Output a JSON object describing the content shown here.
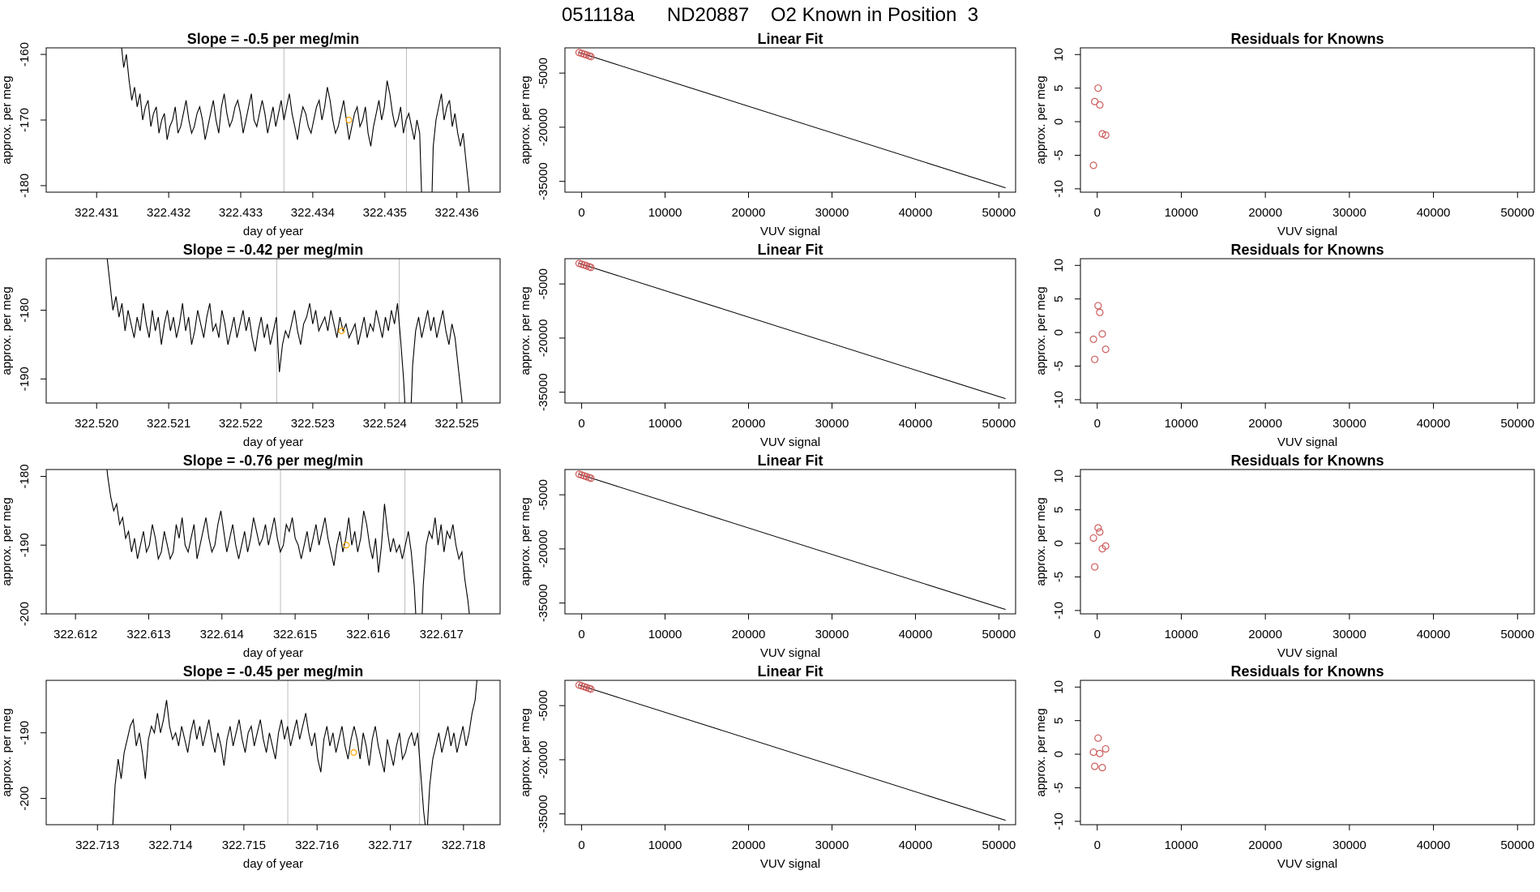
{
  "figure": {
    "title": "051118a      ND20887    O2 Known in Position  3"
  },
  "chart_data": [
    {
      "type": "line",
      "panel": "slope",
      "row": 1,
      "title": "Slope =  -0.5  per meg/min",
      "xlabel": "day of year",
      "ylabel": "approx. per meg",
      "xlim": [
        322.4303,
        322.4366
      ],
      "ylim": [
        -181,
        -159
      ],
      "x_ticks": [
        "322.431",
        "322.432",
        "322.433",
        "322.434",
        "322.435",
        "322.436"
      ],
      "y_ticks": [
        "-160",
        "-170",
        "-180"
      ],
      "x_start": 322.4313,
      "x_end": 322.4362,
      "trace": [
        -152,
        -158,
        -162,
        -160,
        -164,
        -167,
        -165,
        -168,
        -166,
        -170,
        -168,
        -167,
        -171,
        -169,
        -168,
        -172,
        -170,
        -169,
        -173,
        -171,
        -170,
        -168,
        -172,
        -171,
        -169,
        -167,
        -170,
        -172,
        -171,
        -169,
        -168,
        -170,
        -173,
        -171,
        -169,
        -167,
        -170,
        -172,
        -168,
        -166,
        -169,
        -171,
        -170,
        -168,
        -167,
        -169,
        -172,
        -170,
        -168,
        -166,
        -170,
        -171,
        -169,
        -167,
        -169,
        -172,
        -170,
        -168,
        -171,
        -169,
        -167,
        -170,
        -168,
        -166,
        -169,
        -171,
        -173,
        -170,
        -168,
        -169,
        -171,
        -172,
        -170,
        -168,
        -167,
        -170,
        -168,
        -165,
        -167,
        -170,
        -172,
        -171,
        -169,
        -167,
        -170,
        -173,
        -171,
        -169,
        -168,
        -171,
        -170,
        -168,
        -172,
        -174,
        -171,
        -169,
        -167,
        -170,
        -168,
        -164,
        -166,
        -169,
        -171,
        -170,
        -168,
        -172,
        -170,
        -169,
        -171,
        -173,
        -170,
        -172,
        -185,
        -195,
        -200,
        -190,
        -174,
        -170,
        -168,
        -166,
        -170,
        -168,
        -167,
        -171,
        -169,
        -172,
        -174,
        -172,
        -176,
        -180,
        -184
      ],
      "markers": [
        322.4336,
        322.4353
      ],
      "avg_point": {
        "x": 322.4345,
        "y": -170
      }
    },
    {
      "type": "line",
      "panel": "linear-fit",
      "row": 1,
      "title": "Linear Fit",
      "xlabel": "VUV signal",
      "ylabel": "approx. per meg",
      "xlim": [
        -2000,
        52000
      ],
      "ylim": [
        -38000,
        2000
      ],
      "x_ticks": [
        "0",
        "10000",
        "20000",
        "30000",
        "40000",
        "50000"
      ],
      "y_ticks": [
        "-5000",
        "-20000",
        "-35000"
      ],
      "fit_line": {
        "x": [
          -300,
          50800
        ],
        "y": [
          700,
          -36800
        ]
      },
      "known_points": {
        "x": [
          -300,
          0,
          300,
          600,
          900,
          1100
        ],
        "y": [
          700,
          480,
          250,
          0,
          -230,
          -420
        ]
      }
    },
    {
      "type": "scatter",
      "panel": "residuals",
      "row": 1,
      "title": "Residuals for Knowns",
      "xlabel": "VUV signal",
      "ylabel": "approx. per meg",
      "xlim": [
        -2000,
        52000
      ],
      "ylim": [
        -10.5,
        11
      ],
      "x_ticks": [
        "0",
        "10000",
        "20000",
        "30000",
        "40000",
        "50000"
      ],
      "y_ticks": [
        "-10",
        "-5",
        "0",
        "5",
        "10"
      ],
      "points": {
        "x": [
          -450,
          -300,
          100,
          300,
          600,
          1000
        ],
        "y": [
          -6.5,
          3,
          5,
          2.5,
          -1.8,
          -2
        ]
      }
    },
    {
      "type": "line",
      "panel": "slope",
      "row": 2,
      "title": "Slope =  -0.42  per meg/min",
      "xlabel": "day of year",
      "ylabel": "approx. per meg",
      "xlim": [
        322.5193,
        322.5256
      ],
      "ylim": [
        -193.5,
        -172.5
      ],
      "x_ticks": [
        "322.520",
        "322.521",
        "322.522",
        "322.523",
        "322.524",
        "322.525"
      ],
      "y_ticks": [
        "-180",
        "-190"
      ],
      "x_start": 322.5201,
      "x_end": 322.5251,
      "trace": [
        -165,
        -172,
        -176,
        -180,
        -178,
        -181,
        -179,
        -183,
        -180,
        -182,
        -184,
        -181,
        -183,
        -179,
        -182,
        -184,
        -180,
        -183,
        -181,
        -185,
        -182,
        -180,
        -183,
        -181,
        -184,
        -182,
        -179,
        -183,
        -181,
        -185,
        -183,
        -180,
        -182,
        -184,
        -181,
        -179,
        -183,
        -182,
        -184,
        -180,
        -182,
        -185,
        -183,
        -181,
        -184,
        -182,
        -180,
        -183,
        -181,
        -184,
        -186,
        -183,
        -181,
        -184,
        -182,
        -185,
        -183,
        -181,
        -189,
        -185,
        -183,
        -184,
        -182,
        -180,
        -183,
        -185,
        -182,
        -181,
        -179,
        -182,
        -180,
        -183,
        -182,
        -181,
        -183,
        -180,
        -182,
        -184,
        -181,
        -183,
        -182,
        -184,
        -183,
        -182,
        -185,
        -183,
        -181,
        -184,
        -182,
        -183,
        -180,
        -182,
        -184,
        -181,
        -183,
        -180,
        -182,
        -179,
        -184,
        -190,
        -198,
        -200,
        -188,
        -183,
        -181,
        -184,
        -182,
        -180,
        -183,
        -181,
        -184,
        -182,
        -180,
        -183,
        -185,
        -182,
        -184,
        -188,
        -192,
        -196
      ],
      "markers": [
        322.5225,
        322.5242
      ],
      "avg_point": {
        "x": 322.5234,
        "y": -183
      }
    },
    {
      "type": "line",
      "panel": "linear-fit",
      "row": 2,
      "title": "Linear Fit",
      "xlabel": "VUV signal",
      "ylabel": "approx. per meg",
      "xlim": [
        -2000,
        52000
      ],
      "ylim": [
        -38000,
        2000
      ],
      "x_ticks": [
        "0",
        "10000",
        "20000",
        "30000",
        "40000",
        "50000"
      ],
      "y_ticks": [
        "-5000",
        "-20000",
        "-35000"
      ],
      "fit_line": {
        "x": [
          -300,
          50800
        ],
        "y": [
          700,
          -36800
        ]
      },
      "known_points": {
        "x": [
          -300,
          0,
          300,
          600,
          900,
          1100
        ],
        "y": [
          700,
          480,
          250,
          0,
          -230,
          -420
        ]
      }
    },
    {
      "type": "scatter",
      "panel": "residuals",
      "row": 2,
      "title": "Residuals for Knowns",
      "xlabel": "VUV signal",
      "ylabel": "approx. per meg",
      "xlim": [
        -2000,
        52000
      ],
      "ylim": [
        -10.5,
        11
      ],
      "x_ticks": [
        "0",
        "10000",
        "20000",
        "30000",
        "40000",
        "50000"
      ],
      "y_ticks": [
        "-10",
        "-5",
        "0",
        "5",
        "10"
      ],
      "points": {
        "x": [
          -450,
          -300,
          100,
          300,
          600,
          1000
        ],
        "y": [
          -1,
          -4,
          4,
          3,
          -0.2,
          -2.5
        ]
      }
    },
    {
      "type": "line",
      "panel": "slope",
      "row": 3,
      "title": "Slope =  -0.76  per meg/min",
      "xlabel": "day of year",
      "ylabel": "approx. per meg",
      "xlim": [
        322.6116,
        322.6178
      ],
      "ylim": [
        -200,
        -179
      ],
      "x_ticks": [
        "322.612",
        "322.613",
        "322.614",
        "322.615",
        "322.616",
        "322.617"
      ],
      "y_ticks": [
        "-180",
        "-190",
        "-200"
      ],
      "x_start": 322.6124,
      "x_end": 322.6174,
      "trace": [
        -176,
        -180,
        -183,
        -185,
        -184,
        -187,
        -186,
        -189,
        -188,
        -191,
        -189,
        -192,
        -190,
        -188,
        -191,
        -190,
        -187,
        -189,
        -192,
        -191,
        -188,
        -190,
        -192,
        -191,
        -187,
        -189,
        -186,
        -190,
        -191,
        -189,
        -187,
        -192,
        -190,
        -188,
        -186,
        -189,
        -191,
        -190,
        -187,
        -185,
        -188,
        -191,
        -189,
        -187,
        -190,
        -192,
        -190,
        -188,
        -191,
        -189,
        -186,
        -188,
        -190,
        -189,
        -187,
        -190,
        -188,
        -186,
        -189,
        -191,
        -190,
        -187,
        -188,
        -186,
        -189,
        -190,
        -192,
        -190,
        -188,
        -191,
        -189,
        -187,
        -190,
        -188,
        -186,
        -189,
        -191,
        -193,
        -190,
        -188,
        -191,
        -189,
        -186,
        -190,
        -188,
        -191,
        -189,
        -185,
        -187,
        -190,
        -192,
        -189,
        -194,
        -190,
        -184,
        -188,
        -191,
        -189,
        -191,
        -190,
        -192,
        -190,
        -188,
        -191,
        -196,
        -204,
        -208,
        -196,
        -190,
        -188,
        -189,
        -186,
        -190,
        -187,
        -191,
        -188,
        -189,
        -187,
        -190,
        -192,
        -191,
        -195,
        -198,
        -202
      ],
      "markers": [
        322.6148,
        322.6165
      ],
      "avg_point": {
        "x": 322.6157,
        "y": -190
      }
    },
    {
      "type": "line",
      "panel": "linear-fit",
      "row": 3,
      "title": "Linear Fit",
      "xlabel": "VUV signal",
      "ylabel": "approx. per meg",
      "xlim": [
        -2000,
        52000
      ],
      "ylim": [
        -38000,
        2000
      ],
      "x_ticks": [
        "0",
        "10000",
        "20000",
        "30000",
        "40000",
        "50000"
      ],
      "y_ticks": [
        "-5000",
        "-20000",
        "-35000"
      ],
      "fit_line": {
        "x": [
          -300,
          50800
        ],
        "y": [
          700,
          -36800
        ]
      },
      "known_points": {
        "x": [
          -300,
          0,
          300,
          600,
          900,
          1100
        ],
        "y": [
          700,
          480,
          250,
          0,
          -230,
          -420
        ]
      }
    },
    {
      "type": "scatter",
      "panel": "residuals",
      "row": 3,
      "title": "Residuals for Knowns",
      "xlabel": "VUV signal",
      "ylabel": "approx. per meg",
      "xlim": [
        -2000,
        52000
      ],
      "ylim": [
        -10.5,
        11
      ],
      "x_ticks": [
        "0",
        "10000",
        "20000",
        "30000",
        "40000",
        "50000"
      ],
      "y_ticks": [
        "-10",
        "-5",
        "0",
        "5",
        "10"
      ],
      "points": {
        "x": [
          -450,
          -300,
          100,
          300,
          600,
          1000
        ],
        "y": [
          0.8,
          -3.5,
          2.3,
          1.7,
          -0.8,
          -0.4
        ]
      }
    },
    {
      "type": "line",
      "panel": "slope",
      "row": 4,
      "title": "Slope =  -0.45  per meg/min",
      "xlabel": "day of year",
      "ylabel": "approx. per meg",
      "xlim": [
        322.7123,
        322.7185
      ],
      "ylim": [
        -204,
        -182
      ],
      "x_ticks": [
        "322.713",
        "322.714",
        "322.715",
        "322.716",
        "322.717",
        "322.718"
      ],
      "y_ticks": [
        "-190",
        "-200"
      ],
      "x_start": 322.7132,
      "x_end": 322.7182,
      "trace": [
        -206,
        -198,
        -194,
        -197,
        -193,
        -191,
        -189,
        -188,
        -192,
        -190,
        -193,
        -197,
        -191,
        -189,
        -190,
        -187,
        -190,
        -188,
        -185,
        -189,
        -191,
        -190,
        -192,
        -189,
        -191,
        -193,
        -190,
        -188,
        -191,
        -189,
        -192,
        -190,
        -188,
        -191,
        -193,
        -190,
        -192,
        -195,
        -191,
        -189,
        -192,
        -190,
        -188,
        -191,
        -193,
        -190,
        -189,
        -192,
        -190,
        -188,
        -191,
        -193,
        -190,
        -192,
        -194,
        -190,
        -188,
        -191,
        -189,
        -192,
        -190,
        -188,
        -191,
        -189,
        -187,
        -190,
        -192,
        -190,
        -194,
        -196,
        -191,
        -189,
        -192,
        -190,
        -193,
        -191,
        -189,
        -192,
        -194,
        -191,
        -189,
        -191,
        -194,
        -190,
        -192,
        -195,
        -191,
        -189,
        -192,
        -194,
        -196,
        -191,
        -193,
        -195,
        -192,
        -190,
        -194,
        -193,
        -191,
        -190,
        -192,
        -190,
        -196,
        -202,
        -206,
        -198,
        -194,
        -192,
        -190,
        -193,
        -191,
        -189,
        -192,
        -190,
        -193,
        -191,
        -189,
        -192,
        -190,
        -187,
        -185,
        -180
      ],
      "markers": [
        322.7156,
        322.7174
      ],
      "avg_point": {
        "x": 322.7165,
        "y": -193
      }
    },
    {
      "type": "line",
      "panel": "linear-fit",
      "row": 4,
      "title": "Linear Fit",
      "xlabel": "VUV signal",
      "ylabel": "approx. per meg",
      "xlim": [
        -2000,
        52000
      ],
      "ylim": [
        -38000,
        2000
      ],
      "x_ticks": [
        "0",
        "10000",
        "20000",
        "30000",
        "40000",
        "50000"
      ],
      "y_ticks": [
        "-5000",
        "-20000",
        "-35000"
      ],
      "fit_line": {
        "x": [
          -300,
          50800
        ],
        "y": [
          700,
          -36800
        ]
      },
      "known_points": {
        "x": [
          -300,
          0,
          300,
          600,
          900,
          1100
        ],
        "y": [
          700,
          480,
          250,
          0,
          -230,
          -420
        ]
      }
    },
    {
      "type": "scatter",
      "panel": "residuals",
      "row": 4,
      "title": "Residuals for Knowns",
      "xlabel": "VUV signal",
      "ylabel": "approx. per meg",
      "xlim": [
        -2000,
        52000
      ],
      "ylim": [
        -10.5,
        11
      ],
      "x_ticks": [
        "0",
        "10000",
        "20000",
        "30000",
        "40000",
        "50000"
      ],
      "y_ticks": [
        "-10",
        "-5",
        "0",
        "5",
        "10"
      ],
      "points": {
        "x": [
          -450,
          -300,
          100,
          300,
          600,
          1000
        ],
        "y": [
          0.3,
          -1.8,
          2.4,
          0.1,
          -2,
          0.8
        ]
      }
    }
  ]
}
